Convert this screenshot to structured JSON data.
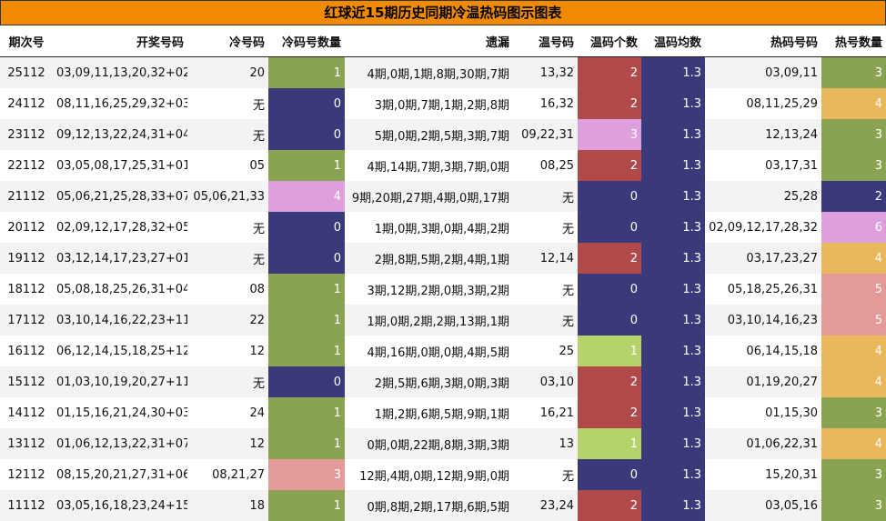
{
  "title": "红球近15期历史同期冷温热码图示图表",
  "headers": [
    "期次号",
    "开奖号码",
    "冷号码",
    "冷码号数量",
    "遗漏",
    "温号码",
    "温码个数",
    "温码均数",
    "热码号码",
    "热号数量"
  ],
  "colors": {
    "title_bg": "#f08a00",
    "count_0": "#3a3a7a",
    "count_1": "#8aa352",
    "count_1_light": "#b5d36a",
    "count_2": "#b04a4a",
    "count_3_cold": "#e59a9a",
    "count_3_warm": "#dda0dd",
    "count_3_hot": "#8aa352",
    "count_4": "#e8b85a",
    "count_4_cold": "#dda0dd",
    "count_5": "#e59a9a",
    "count_6": "#dda0dd",
    "avg_bg": "#3a3a7a"
  },
  "rows": [
    {
      "issue": "25112",
      "numbers": "03,09,11,13,20,32+02",
      "cold": "20",
      "cold_count": "1",
      "miss": "4期,0期,1期,8期,30期,7期",
      "warm": "13,32",
      "warm_count": "2",
      "warm_avg": "1.3",
      "hot": "03,09,11",
      "hot_count": "3"
    },
    {
      "issue": "24112",
      "numbers": "08,11,16,25,29,32+03",
      "cold": "无",
      "cold_count": "0",
      "miss": "3期,0期,7期,1期,2期,8期",
      "warm": "16,32",
      "warm_count": "2",
      "warm_avg": "1.3",
      "hot": "08,11,25,29",
      "hot_count": "4"
    },
    {
      "issue": "23112",
      "numbers": "09,12,13,22,24,31+04",
      "cold": "无",
      "cold_count": "0",
      "miss": "5期,0期,2期,5期,3期,7期",
      "warm": "09,22,31",
      "warm_count": "3",
      "warm_avg": "1.3",
      "hot": "12,13,24",
      "hot_count": "3"
    },
    {
      "issue": "22112",
      "numbers": "03,05,08,17,25,31+01",
      "cold": "05",
      "cold_count": "1",
      "miss": "4期,14期,7期,3期,7期,0期",
      "warm": "08,25",
      "warm_count": "2",
      "warm_avg": "1.3",
      "hot": "03,17,31",
      "hot_count": "3"
    },
    {
      "issue": "21112",
      "numbers": "05,06,21,25,28,33+07",
      "cold": "05,06,21,33",
      "cold_count": "4",
      "miss": "9期,20期,27期,4期,0期,17期",
      "warm": "无",
      "warm_count": "0",
      "warm_avg": "1.3",
      "hot": "25,28",
      "hot_count": "2"
    },
    {
      "issue": "20112",
      "numbers": "02,09,12,17,28,32+05",
      "cold": "无",
      "cold_count": "0",
      "miss": "1期,0期,3期,0期,4期,2期",
      "warm": "无",
      "warm_count": "0",
      "warm_avg": "1.3",
      "hot": "02,09,12,17,28,32",
      "hot_count": "6"
    },
    {
      "issue": "19112",
      "numbers": "03,12,14,17,23,27+01",
      "cold": "无",
      "cold_count": "0",
      "miss": "2期,8期,5期,2期,4期,1期",
      "warm": "12,14",
      "warm_count": "2",
      "warm_avg": "1.3",
      "hot": "03,17,23,27",
      "hot_count": "4"
    },
    {
      "issue": "18112",
      "numbers": "05,08,18,25,26,31+04",
      "cold": "08",
      "cold_count": "1",
      "miss": "3期,12期,2期,0期,3期,2期",
      "warm": "无",
      "warm_count": "0",
      "warm_avg": "1.3",
      "hot": "05,18,25,26,31",
      "hot_count": "5"
    },
    {
      "issue": "17112",
      "numbers": "03,10,14,16,22,23+11",
      "cold": "22",
      "cold_count": "1",
      "miss": "1期,0期,2期,2期,13期,1期",
      "warm": "无",
      "warm_count": "0",
      "warm_avg": "1.3",
      "hot": "03,10,14,16,23",
      "hot_count": "5"
    },
    {
      "issue": "16112",
      "numbers": "06,12,14,15,18,25+12",
      "cold": "12",
      "cold_count": "1",
      "miss": "4期,16期,0期,0期,4期,5期",
      "warm": "25",
      "warm_count": "1",
      "warm_avg": "1.3",
      "hot": "06,14,15,18",
      "hot_count": "4"
    },
    {
      "issue": "15112",
      "numbers": "01,03,10,19,20,27+11",
      "cold": "无",
      "cold_count": "0",
      "miss": "2期,5期,6期,3期,0期,3期",
      "warm": "03,10",
      "warm_count": "2",
      "warm_avg": "1.3",
      "hot": "01,19,20,27",
      "hot_count": "4"
    },
    {
      "issue": "14112",
      "numbers": "01,15,16,21,24,30+03",
      "cold": "24",
      "cold_count": "1",
      "miss": "1期,2期,6期,5期,9期,1期",
      "warm": "16,21",
      "warm_count": "2",
      "warm_avg": "1.3",
      "hot": "01,15,30",
      "hot_count": "3"
    },
    {
      "issue": "13112",
      "numbers": "01,06,12,13,22,31+07",
      "cold": "12",
      "cold_count": "1",
      "miss": "0期,0期,22期,8期,3期,3期",
      "warm": "13",
      "warm_count": "1",
      "warm_avg": "1.3",
      "hot": "01,06,22,31",
      "hot_count": "4"
    },
    {
      "issue": "12112",
      "numbers": "08,15,20,21,27,31+06",
      "cold": "08,21,27",
      "cold_count": "3",
      "miss": "12期,4期,0期,12期,9期,0期",
      "warm": "无",
      "warm_count": "0",
      "warm_avg": "1.3",
      "hot": "15,20,31",
      "hot_count": "3"
    },
    {
      "issue": "11112",
      "numbers": "03,05,16,18,23,24+15",
      "cold": "18",
      "cold_count": "1",
      "miss": "0期,8期,2期,17期,6期,5期",
      "warm": "23,24",
      "warm_count": "2",
      "warm_avg": "1.3",
      "hot": "03,05,16",
      "hot_count": "3"
    }
  ]
}
